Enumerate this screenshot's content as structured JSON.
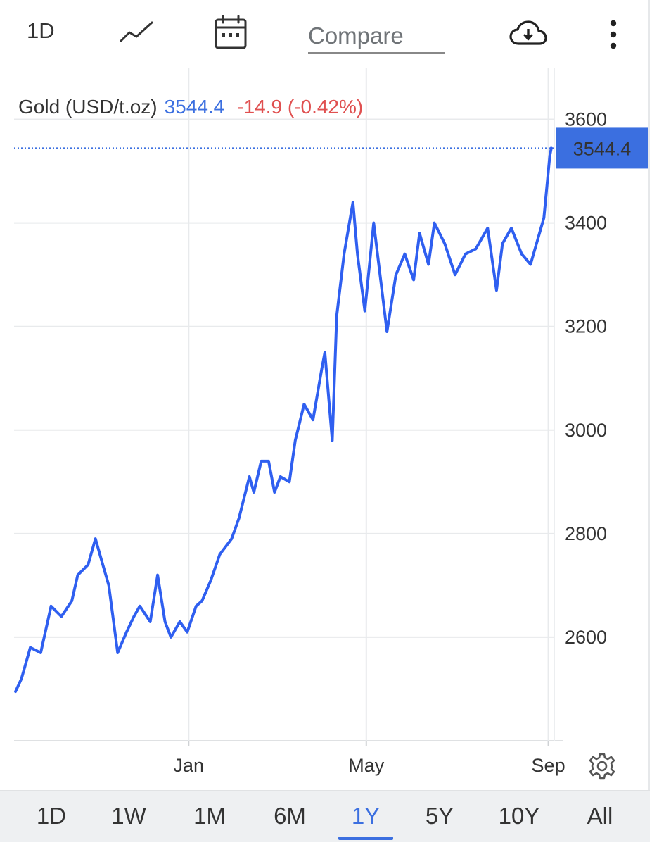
{
  "toolbar": {
    "interval_label": "1D",
    "compare_placeholder": "Compare",
    "icons": [
      "line-chart-icon",
      "calendar-icon",
      "cloud-download-icon",
      "more-vert-icon"
    ]
  },
  "legend": {
    "name": "Gold (USD/t.oz)",
    "value": "3544.4",
    "change": "-14.9 (-0.42%)"
  },
  "colors": {
    "line": "#2f5ff0",
    "accent": "#3b6fe0",
    "negative": "#e05050",
    "grid": "#e8eaec"
  },
  "ranges": [
    "1D",
    "1W",
    "1M",
    "6M",
    "1Y",
    "5Y",
    "10Y",
    "All"
  ],
  "active_range": "1Y",
  "chart_data": {
    "type": "line",
    "title": "",
    "xlabel": "",
    "ylabel": "",
    "ylim": [
      2400,
      3700
    ],
    "y_ticks": [
      2600,
      2800,
      3000,
      3200,
      3400,
      3600
    ],
    "x_ticks": [
      {
        "label": "Jan",
        "x": "2025-01-01"
      },
      {
        "label": "May",
        "x": "2025-05-01"
      },
      {
        "label": "Sep",
        "x": "2025-09-01"
      }
    ],
    "xlim": [
      "2024-09-05",
      "2025-09-05"
    ],
    "grid": true,
    "last_value_label": "3544.4",
    "series": [
      {
        "x": [
          "2024-09-06",
          "2024-09-10",
          "2024-09-16",
          "2024-09-23",
          "2024-09-30",
          "2024-10-07",
          "2024-10-14",
          "2024-10-18",
          "2024-10-25",
          "2024-10-30",
          "2024-11-04",
          "2024-11-08",
          "2024-11-14",
          "2024-11-20",
          "2024-11-25",
          "2024-11-29",
          "2024-12-06",
          "2024-12-11",
          "2024-12-16",
          "2024-12-20",
          "2024-12-26",
          "2024-12-31",
          "2025-01-06",
          "2025-01-10",
          "2025-01-16",
          "2025-01-22",
          "2025-01-30",
          "2025-02-04",
          "2025-02-11",
          "2025-02-14",
          "2025-02-19",
          "2025-02-24",
          "2025-02-28",
          "2025-03-04",
          "2025-03-10",
          "2025-03-14",
          "2025-03-20",
          "2025-03-26",
          "2025-04-01",
          "2025-04-03",
          "2025-04-08",
          "2025-04-11",
          "2025-04-16",
          "2025-04-22",
          "2025-04-25",
          "2025-04-30",
          "2025-05-06",
          "2025-05-09",
          "2025-05-15",
          "2025-05-21",
          "2025-05-27",
          "2025-06-02",
          "2025-06-06",
          "2025-06-12",
          "2025-06-16",
          "2025-06-23",
          "2025-06-30",
          "2025-07-07",
          "2025-07-14",
          "2025-07-22",
          "2025-07-28",
          "2025-08-01",
          "2025-08-07",
          "2025-08-14",
          "2025-08-20",
          "2025-08-26",
          "2025-08-29",
          "2025-09-02",
          "2025-09-03"
        ],
        "y": [
          2495,
          2520,
          2580,
          2570,
          2660,
          2640,
          2670,
          2720,
          2740,
          2790,
          2740,
          2700,
          2570,
          2610,
          2640,
          2660,
          2630,
          2720,
          2630,
          2600,
          2630,
          2610,
          2660,
          2670,
          2710,
          2760,
          2790,
          2830,
          2910,
          2880,
          2940,
          2940,
          2880,
          2910,
          2900,
          2980,
          3050,
          3020,
          3120,
          3150,
          2980,
          3220,
          3340,
          3440,
          3340,
          3230,
          3400,
          3330,
          3190,
          3300,
          3340,
          3290,
          3380,
          3320,
          3400,
          3360,
          3300,
          3340,
          3350,
          3390,
          3270,
          3360,
          3390,
          3340,
          3320,
          3380,
          3410,
          3530,
          3544.4
        ]
      }
    ]
  }
}
